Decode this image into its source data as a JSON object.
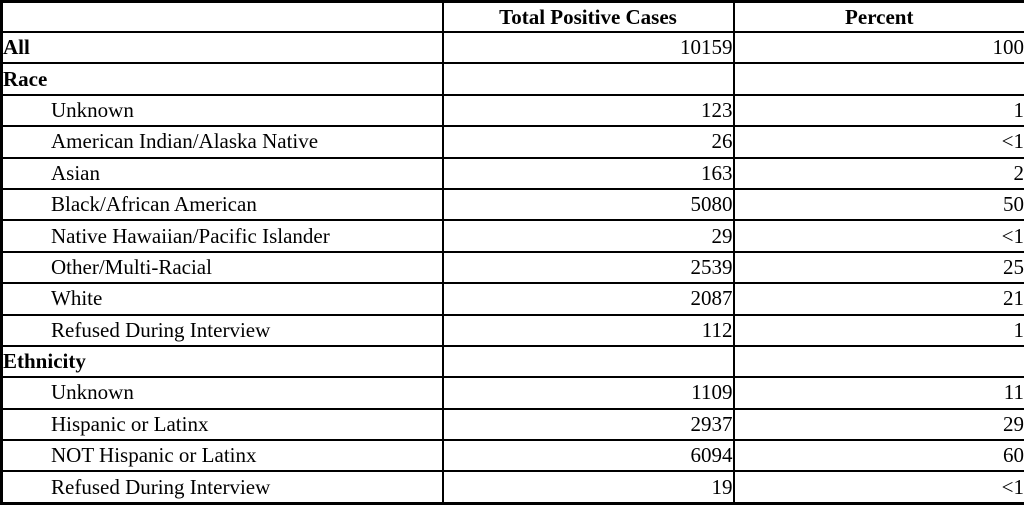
{
  "table": {
    "header": {
      "label_col": "",
      "cases_col": "Total Positive Cases",
      "percent_col": "Percent"
    },
    "rows": [
      {
        "label": "All",
        "cases": "10159",
        "percent": "100"
      },
      {
        "label": "Race",
        "cases": "",
        "percent": ""
      },
      {
        "label": "Unknown",
        "cases": "123",
        "percent": "1"
      },
      {
        "label": "American Indian/Alaska Native",
        "cases": "26",
        "percent": "<1"
      },
      {
        "label": "Asian",
        "cases": "163",
        "percent": "2"
      },
      {
        "label": "Black/African American",
        "cases": "5080",
        "percent": "50"
      },
      {
        "label": "Native Hawaiian/Pacific Islander",
        "cases": "29",
        "percent": "<1"
      },
      {
        "label": "Other/Multi-Racial",
        "cases": "2539",
        "percent": "25"
      },
      {
        "label": "White",
        "cases": "2087",
        "percent": "21"
      },
      {
        "label": "Refused During Interview",
        "cases": "112",
        "percent": "1"
      },
      {
        "label": "Ethnicity",
        "cases": "",
        "percent": ""
      },
      {
        "label": "Unknown",
        "cases": "1109",
        "percent": "11"
      },
      {
        "label": "Hispanic or Latinx",
        "cases": "2937",
        "percent": "29"
      },
      {
        "label": "NOT Hispanic or Latinx",
        "cases": "6094",
        "percent": "60"
      },
      {
        "label": "Refused During Interview",
        "cases": "19",
        "percent": "<1"
      }
    ],
    "colors": {
      "border": "#000000",
      "background": "#ffffff",
      "text": "#000000"
    }
  }
}
